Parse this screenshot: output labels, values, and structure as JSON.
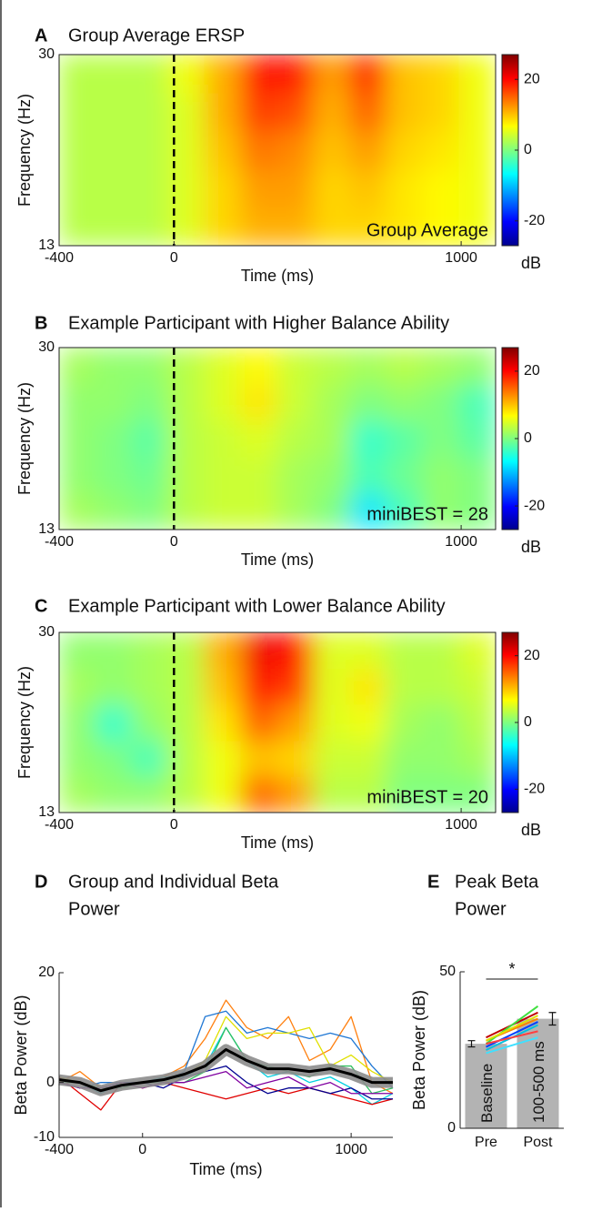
{
  "chart_data": [
    {
      "type": "heatmap",
      "label": "A",
      "title": "Group Average ERSP",
      "annotation": "Group Average",
      "xlabel": "Time (ms)",
      "ylabel": "Frequency (Hz)",
      "x": [
        -337,
        -210,
        -83,
        43,
        170,
        297,
        423,
        550,
        677,
        803,
        930,
        1057
      ],
      "y": [
        14.7,
        18.1,
        21.5,
        24.9,
        28.3
      ],
      "z": [
        [
          3,
          3,
          3,
          5,
          9,
          11,
          11,
          9,
          9,
          8,
          7,
          6
        ],
        [
          3,
          3,
          3,
          5,
          9,
          12,
          12,
          9,
          10,
          8,
          7,
          6
        ],
        [
          3,
          3,
          3,
          5,
          10,
          14,
          13,
          10,
          12,
          9,
          8,
          6
        ],
        [
          3,
          3,
          3,
          5,
          11,
          17,
          16,
          11,
          15,
          10,
          9,
          6
        ],
        [
          3,
          3,
          3,
          6,
          11,
          19,
          19,
          12,
          18,
          10,
          9,
          6
        ]
      ],
      "xlim": [
        -400,
        1120
      ],
      "ylim": [
        13,
        30
      ],
      "xticks": [
        -400,
        0,
        1000
      ],
      "yticks": [
        13,
        30
      ],
      "clim": [
        -27,
        27
      ],
      "cticks": [
        -20,
        0,
        20
      ],
      "colorbar_label": "dB",
      "vline": 0
    },
    {
      "type": "heatmap",
      "label": "B",
      "title": "Example Participant with Higher Balance Ability",
      "annotation": "miniBEST = 28",
      "xlabel": "Time (ms)",
      "ylabel": "Frequency (Hz)",
      "x": [
        -337,
        -210,
        -83,
        43,
        170,
        297,
        423,
        550,
        677,
        803,
        930,
        1057
      ],
      "y": [
        14.7,
        18.1,
        21.5,
        24.9,
        28.3
      ],
      "z": [
        [
          2,
          1,
          0,
          3,
          4,
          4,
          2,
          0,
          -8,
          -3,
          1,
          0
        ],
        [
          1,
          0,
          -1,
          3,
          4,
          4,
          2,
          1,
          -3,
          -1,
          1,
          0
        ],
        [
          1,
          0,
          -2,
          3,
          4,
          5,
          3,
          2,
          -4,
          -2,
          0,
          -2
        ],
        [
          1,
          1,
          0,
          3,
          5,
          8,
          4,
          2,
          0,
          1,
          0,
          -3
        ],
        [
          2,
          1,
          1,
          3,
          5,
          7,
          4,
          3,
          2,
          3,
          2,
          1
        ]
      ],
      "xlim": [
        -400,
        1120
      ],
      "ylim": [
        13,
        30
      ],
      "xticks": [
        -400,
        0,
        1000
      ],
      "yticks": [
        13,
        30
      ],
      "clim": [
        -27,
        27
      ],
      "cticks": [
        -20,
        0,
        20
      ],
      "colorbar_label": "dB",
      "vline": 0
    },
    {
      "type": "heatmap",
      "label": "C",
      "title": "Example Participant with Lower Balance Ability",
      "annotation": "miniBEST = 20",
      "xlabel": "Time (ms)",
      "ylabel": "Frequency (Hz)",
      "x": [
        -337,
        -210,
        -83,
        43,
        170,
        297,
        423,
        550,
        677,
        803,
        930,
        1057
      ],
      "y": [
        14.7,
        18.1,
        21.5,
        24.9,
        28.3
      ],
      "z": [
        [
          2,
          1,
          1,
          3,
          6,
          15,
          12,
          3,
          3,
          0,
          0,
          0
        ],
        [
          1,
          0,
          -3,
          3,
          6,
          10,
          9,
          4,
          4,
          1,
          1,
          2
        ],
        [
          1,
          -4,
          1,
          3,
          8,
          15,
          12,
          5,
          6,
          2,
          1,
          3
        ],
        [
          2,
          1,
          2,
          3,
          10,
          19,
          17,
          5,
          8,
          3,
          3,
          4
        ],
        [
          1,
          1,
          2,
          3,
          11,
          21,
          19,
          5,
          5,
          3,
          3,
          5
        ]
      ],
      "xlim": [
        -400,
        1120
      ],
      "ylim": [
        13,
        30
      ],
      "xticks": [
        -400,
        0,
        1000
      ],
      "yticks": [
        13,
        30
      ],
      "clim": [
        -27,
        27
      ],
      "cticks": [
        -20,
        0,
        20
      ],
      "colorbar_label": "dB",
      "vline": 0
    },
    {
      "type": "line",
      "label": "D",
      "title": [
        "Group and Individual Beta",
        "Power"
      ],
      "xlabel": "Time (ms)",
      "ylabel": "Beta Power (dB)",
      "x": [
        -400,
        -300,
        -200,
        -100,
        0,
        100,
        200,
        300,
        400,
        500,
        600,
        700,
        800,
        900,
        1000,
        1100,
        1200
      ],
      "series": [
        {
          "color": "#ff7f0e",
          "values": [
            0,
            2,
            -1,
            0,
            0,
            1,
            3,
            8,
            15,
            10,
            8,
            12,
            4,
            6,
            12,
            0,
            -2
          ]
        },
        {
          "color": "#1f77d4",
          "values": [
            0,
            -1,
            0,
            0,
            0,
            0,
            2,
            12,
            13,
            9,
            10,
            9,
            8,
            9,
            8,
            3,
            -1
          ]
        },
        {
          "color": "#e0e000",
          "values": [
            1,
            0,
            -1,
            -1,
            0,
            0,
            1,
            4,
            12,
            8,
            9,
            9,
            10,
            3,
            5,
            2,
            0
          ]
        },
        {
          "color": "#00d0e0",
          "values": [
            0,
            0,
            -2,
            0,
            0,
            1,
            1,
            3,
            10,
            4,
            1,
            2,
            0,
            1,
            -1,
            -4,
            -2
          ]
        },
        {
          "color": "#e00000",
          "values": [
            1,
            -2,
            -5,
            0,
            -1,
            0,
            -1,
            -2,
            -3,
            -2,
            -1,
            -2,
            -1,
            -2,
            -3,
            -4,
            -3
          ]
        },
        {
          "color": "#000090",
          "values": [
            0,
            -1,
            -1,
            0,
            0,
            -1,
            1,
            2,
            3,
            0,
            -2,
            -1,
            -1,
            -2,
            -1,
            -3,
            -3
          ]
        },
        {
          "color": "#30c060",
          "values": [
            0,
            0,
            -1,
            -1,
            0,
            0,
            0,
            2,
            10,
            4,
            3,
            2,
            1,
            3,
            3,
            -2,
            -1
          ]
        },
        {
          "color": "#8000a0",
          "values": [
            0,
            -1,
            -1,
            0,
            -1,
            0,
            0,
            1,
            2,
            -1,
            0,
            1,
            -1,
            0,
            -2,
            -2,
            -2
          ]
        },
        {
          "color": "#000000",
          "band_color": "#8c8c8c",
          "values": [
            0.5,
            0,
            -1.5,
            -0.5,
            0,
            0.5,
            1.5,
            3,
            6,
            4,
            2.5,
            2.5,
            2,
            2.5,
            1.5,
            0,
            0
          ]
        }
      ],
      "xlim": [
        -400,
        1200
      ],
      "ylim": [
        -10,
        20
      ],
      "xticks": [
        -400,
        0,
        1000
      ],
      "yticks": [
        -10,
        0,
        20
      ]
    },
    {
      "type": "bar",
      "label": "E",
      "title": [
        "Peak Beta",
        "Power"
      ],
      "ylabel": "Beta Power (dB)",
      "categories": [
        "Pre",
        "Post"
      ],
      "values": [
        27,
        35
      ],
      "errors": [
        1,
        2
      ],
      "color": "#b3b3b3",
      "bar_labels": [
        "Baseline",
        "100-500 ms"
      ],
      "significance": "*",
      "pairs": [
        {
          "color": "#c00000",
          "values": [
            29,
            37
          ]
        },
        {
          "color": "#ff8000",
          "values": [
            28,
            35
          ]
        },
        {
          "color": "#00c0e0",
          "values": [
            25,
            33
          ]
        },
        {
          "color": "#40e040",
          "values": [
            27,
            39
          ]
        },
        {
          "color": "#0040ff",
          "values": [
            26,
            34
          ]
        },
        {
          "color": "#40e0ff",
          "values": [
            24,
            29
          ]
        },
        {
          "color": "#e0e000",
          "values": [
            28,
            36
          ]
        },
        {
          "color": "#ff4040",
          "values": [
            27,
            31
          ]
        }
      ],
      "ylim": [
        0,
        50
      ],
      "yticks": [
        0,
        50
      ]
    }
  ]
}
